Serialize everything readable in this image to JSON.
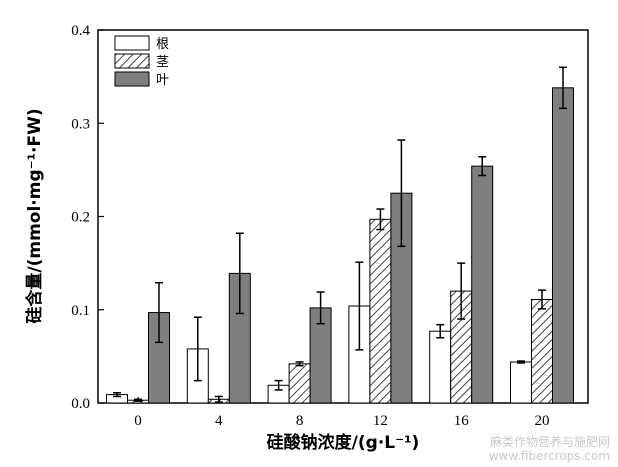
{
  "chart_data": {
    "type": "bar",
    "categories": [
      "0",
      "4",
      "8",
      "12",
      "16",
      "20"
    ],
    "series": [
      {
        "name": "根",
        "style": "white",
        "values": [
          0.009,
          0.058,
          0.019,
          0.104,
          0.077,
          0.044
        ],
        "errors": [
          0.002,
          0.034,
          0.005,
          0.047,
          0.007,
          0.001
        ]
      },
      {
        "name": "茎",
        "style": "hatched",
        "values": [
          0.003,
          0.004,
          0.042,
          0.197,
          0.12,
          0.111
        ],
        "errors": [
          0.001,
          0.003,
          0.002,
          0.011,
          0.03,
          0.01
        ]
      },
      {
        "name": "叶",
        "style": "gray",
        "values": [
          0.097,
          0.139,
          0.102,
          0.225,
          0.254,
          0.338
        ],
        "errors": [
          0.032,
          0.043,
          0.017,
          0.057,
          0.01,
          0.022
        ]
      }
    ],
    "xlabel": "硅酸钠浓度/(g·L⁻¹)",
    "ylabel": "硅含量/(mmol·mg⁻¹·FW)",
    "ylim": [
      0,
      0.4
    ],
    "yticks": [
      "0.0",
      "0.1",
      "0.2",
      "0.3",
      "0.4"
    ],
    "legend": "top-left",
    "colors": {
      "white": "#ffffff",
      "gray": "#7f7f7f",
      "hatch": "#444444",
      "edge": "#000000"
    }
  },
  "watermark": {
    "line1": "麻类作物营养与施肥网",
    "line2": "www.fibercrops.com"
  }
}
